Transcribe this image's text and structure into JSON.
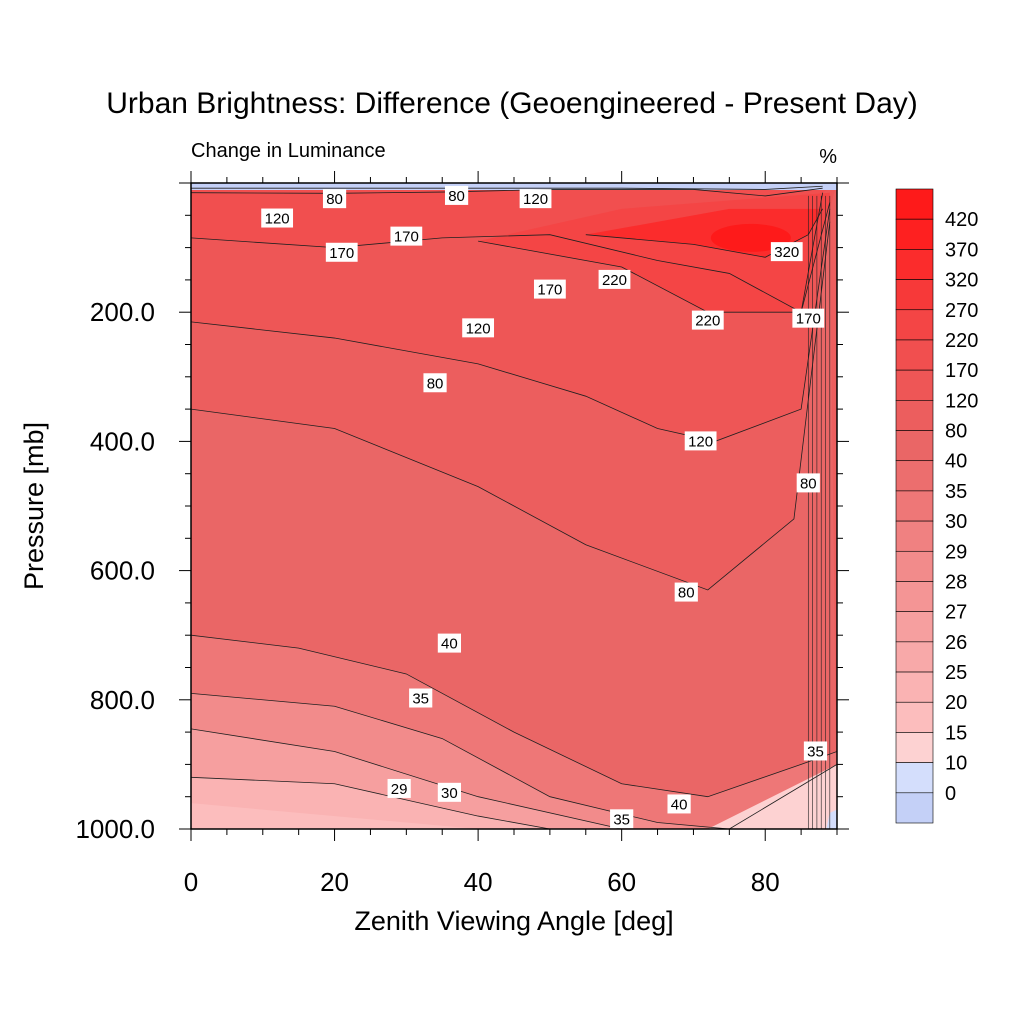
{
  "chart_data": {
    "type": "contour",
    "title": "Urban Brightness: Difference (Geoengineered - Present Day)",
    "subtitle_left": "Change in Luminance",
    "subtitle_right": "%",
    "xlabel": "Zenith Viewing Angle [deg]",
    "ylabel": "Pressure [mb]",
    "xlim": [
      0,
      90
    ],
    "ylim": [
      1000,
      0
    ],
    "x_ticks": [
      {
        "value": 0,
        "label": "0"
      },
      {
        "value": 20,
        "label": "20"
      },
      {
        "value": 40,
        "label": "40"
      },
      {
        "value": 60,
        "label": "60"
      },
      {
        "value": 80,
        "label": "80"
      }
    ],
    "y_ticks": [
      {
        "value": 200,
        "label": "200.0"
      },
      {
        "value": 400,
        "label": "400.0"
      },
      {
        "value": 600,
        "label": "600.0"
      },
      {
        "value": 800,
        "label": "800.0"
      },
      {
        "value": 1000,
        "label": "1000.0"
      }
    ],
    "colorbar_labels": [
      "420",
      "370",
      "320",
      "270",
      "220",
      "170",
      "120",
      "80",
      "40",
      "35",
      "30",
      "29",
      "28",
      "27",
      "26",
      "25",
      "20",
      "15",
      "10",
      "0"
    ],
    "colorbar_colors": [
      "#fe1a1a",
      "#fe2020",
      "#fb2c2c",
      "#f73939",
      "#f44545",
      "#f14f4f",
      "#ee5656",
      "#ec5e5e",
      "#ea6666",
      "#ec6e6e",
      "#ee7777",
      "#f08181",
      "#f28b8b",
      "#f49595",
      "#f69f9f",
      "#f8a9a9",
      "#fab3b3",
      "#fcbdbd",
      "#fdd2d2",
      "#d4defc",
      "#c4d0f7"
    ],
    "contours": [
      {
        "level": 80,
        "points": [
          [
            0,
            8
          ],
          [
            20,
            8
          ],
          [
            40,
            8
          ],
          [
            60,
            8
          ],
          [
            80,
            10
          ],
          [
            88,
            5
          ]
        ]
      },
      {
        "level": 120,
        "points": [
          [
            0,
            15
          ],
          [
            20,
            16
          ],
          [
            35,
            14
          ],
          [
            50,
            10
          ],
          [
            70,
            10
          ],
          [
            80,
            20
          ],
          [
            88,
            8
          ]
        ]
      },
      {
        "level": 170,
        "points": [
          [
            0,
            85
          ],
          [
            20,
            100
          ],
          [
            35,
            85
          ],
          [
            50,
            80
          ],
          [
            65,
            120
          ],
          [
            75,
            140
          ],
          [
            85,
            200
          ],
          [
            88,
            15
          ]
        ]
      },
      {
        "level": 220,
        "points": [
          [
            40,
            90
          ],
          [
            60,
            130
          ],
          [
            72,
            200
          ],
          [
            85,
            200
          ],
          [
            89,
            30
          ]
        ]
      },
      {
        "level": 320,
        "points": [
          [
            55,
            80
          ],
          [
            70,
            95
          ],
          [
            80,
            115
          ],
          [
            86,
            80
          ],
          [
            88,
            40
          ]
        ]
      },
      {
        "level": 120,
        "points": [
          [
            0,
            215
          ],
          [
            20,
            240
          ],
          [
            40,
            280
          ],
          [
            55,
            330
          ],
          [
            65,
            380
          ],
          [
            73,
            400
          ],
          [
            85,
            350
          ],
          [
            89,
            40
          ]
        ]
      },
      {
        "level": 80,
        "points": [
          [
            0,
            350
          ],
          [
            20,
            380
          ],
          [
            40,
            470
          ],
          [
            55,
            560
          ],
          [
            72,
            630
          ],
          [
            84,
            520
          ],
          [
            89,
            60
          ]
        ]
      },
      {
        "level": 40,
        "points": [
          [
            0,
            700
          ],
          [
            15,
            720
          ],
          [
            30,
            760
          ],
          [
            45,
            850
          ],
          [
            60,
            930
          ],
          [
            72,
            950
          ],
          [
            85,
            900
          ],
          [
            90,
            880
          ]
        ]
      },
      {
        "level": 35,
        "points": [
          [
            0,
            790
          ],
          [
            20,
            810
          ],
          [
            35,
            860
          ],
          [
            50,
            950
          ],
          [
            65,
            990
          ],
          [
            75,
            1000
          ],
          [
            90,
            900
          ]
        ]
      },
      {
        "level": 30,
        "points": [
          [
            0,
            845
          ],
          [
            20,
            880
          ],
          [
            40,
            950
          ],
          [
            60,
            1000
          ]
        ]
      },
      {
        "level": 29,
        "points": [
          [
            0,
            920
          ],
          [
            20,
            930
          ],
          [
            40,
            980
          ],
          [
            50,
            1000
          ]
        ]
      }
    ],
    "contour_labels": [
      {
        "text": "80",
        "x": 20,
        "y": 25
      },
      {
        "text": "80",
        "x": 37,
        "y": 20
      },
      {
        "text": "120",
        "x": 48,
        "y": 25
      },
      {
        "text": "120",
        "x": 12,
        "y": 55
      },
      {
        "text": "170",
        "x": 30,
        "y": 83
      },
      {
        "text": "170",
        "x": 21,
        "y": 108
      },
      {
        "text": "170",
        "x": 50,
        "y": 165
      },
      {
        "text": "220",
        "x": 59,
        "y": 150
      },
      {
        "text": "320",
        "x": 83,
        "y": 107
      },
      {
        "text": "220",
        "x": 72,
        "y": 213
      },
      {
        "text": "170",
        "x": 86,
        "y": 210
      },
      {
        "text": "120",
        "x": 40,
        "y": 225
      },
      {
        "text": "80",
        "x": 34,
        "y": 310
      },
      {
        "text": "120",
        "x": 71,
        "y": 400
      },
      {
        "text": "80",
        "x": 86,
        "y": 465
      },
      {
        "text": "80",
        "x": 69,
        "y": 634
      },
      {
        "text": "40",
        "x": 36,
        "y": 713
      },
      {
        "text": "35",
        "x": 32,
        "y": 798
      },
      {
        "text": "35",
        "x": 87,
        "y": 880
      },
      {
        "text": "29",
        "x": 29,
        "y": 938
      },
      {
        "text": "30",
        "x": 36,
        "y": 944
      },
      {
        "text": "40",
        "x": 68,
        "y": 962
      },
      {
        "text": "35",
        "x": 60,
        "y": 985
      }
    ]
  }
}
